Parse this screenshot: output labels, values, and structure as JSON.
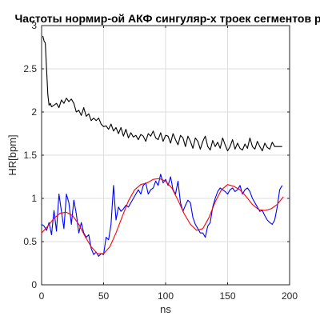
{
  "chart_data": {
    "type": "line",
    "title": "Частоты нормир-ой АКФ сингуляр-х троек сегментов р",
    "xlabel": "ns",
    "ylabel": "HR[bpm]",
    "xlim": [
      0,
      200
    ],
    "ylim": [
      0,
      3
    ],
    "xticks": [
      0,
      50,
      100,
      150,
      200
    ],
    "yticks": [
      0,
      0.5,
      1,
      1.5,
      2,
      2.5,
      3
    ],
    "xtick_labels": [
      "0",
      "50",
      "100",
      "150",
      "200"
    ],
    "ytick_labels": [
      "0",
      "0.5",
      "1",
      "1.5",
      "2",
      "2.5",
      "3"
    ],
    "grid": true,
    "box": true,
    "series": [
      {
        "color": "#000000",
        "x": [
          1,
          2,
          3,
          4,
          5,
          6,
          7,
          8,
          10,
          12,
          14,
          16,
          18,
          20,
          22,
          24,
          26,
          28,
          30,
          32,
          34,
          36,
          38,
          40,
          42,
          44,
          46,
          48,
          50,
          52,
          54,
          56,
          58,
          60,
          62,
          64,
          66,
          68,
          70,
          72,
          74,
          76,
          78,
          80,
          82,
          84,
          86,
          88,
          90,
          92,
          94,
          96,
          98,
          100,
          102,
          104,
          106,
          108,
          110,
          112,
          114,
          116,
          118,
          120,
          122,
          124,
          126,
          128,
          130,
          132,
          134,
          136,
          138,
          140,
          142,
          144,
          146,
          148,
          150,
          152,
          154,
          156,
          158,
          160,
          162,
          164,
          166,
          168,
          170,
          172,
          174,
          176,
          178,
          180,
          182,
          184,
          186,
          188,
          190,
          192,
          194
        ],
        "y": [
          2.88,
          2.82,
          2.8,
          2.5,
          2.2,
          2.08,
          2.1,
          2.06,
          2.08,
          2.1,
          2.05,
          2.14,
          2.1,
          2.16,
          2.12,
          2.15,
          2.1,
          2.0,
          2.02,
          1.96,
          2.05,
          1.95,
          1.98,
          1.9,
          1.93,
          1.9,
          1.93,
          1.86,
          1.83,
          1.84,
          1.8,
          1.86,
          1.78,
          1.82,
          1.75,
          1.82,
          1.72,
          1.8,
          1.7,
          1.76,
          1.71,
          1.73,
          1.68,
          1.74,
          1.72,
          1.66,
          1.75,
          1.72,
          1.78,
          1.7,
          1.68,
          1.76,
          1.66,
          1.73,
          1.72,
          1.64,
          1.75,
          1.68,
          1.62,
          1.73,
          1.7,
          1.6,
          1.72,
          1.66,
          1.58,
          1.7,
          1.66,
          1.57,
          1.66,
          1.72,
          1.6,
          1.56,
          1.67,
          1.6,
          1.65,
          1.58,
          1.7,
          1.62,
          1.55,
          1.6,
          1.68,
          1.57,
          1.64,
          1.58,
          1.56,
          1.63,
          1.58,
          1.7,
          1.6,
          1.57,
          1.66,
          1.6,
          1.55,
          1.64,
          1.59,
          1.57,
          1.65,
          1.6,
          1.6,
          1.6,
          1.6
        ]
      },
      {
        "color": "#0000ff",
        "x": [
          0,
          2,
          4,
          6,
          8,
          10,
          12,
          14,
          16,
          18,
          20,
          22,
          24,
          26,
          28,
          30,
          32,
          34,
          36,
          38,
          40,
          42,
          44,
          46,
          48,
          50,
          52,
          54,
          56,
          58,
          60,
          62,
          64,
          66,
          68,
          70,
          72,
          74,
          76,
          78,
          80,
          82,
          84,
          86,
          88,
          90,
          92,
          94,
          96,
          98,
          100,
          102,
          104,
          106,
          108,
          110,
          112,
          114,
          116,
          118,
          120,
          122,
          124,
          126,
          128,
          130,
          132,
          134,
          136,
          138,
          140,
          142,
          144,
          146,
          148,
          150,
          152,
          154,
          156,
          158,
          160,
          162,
          164,
          166,
          168,
          170,
          172,
          174,
          176,
          178,
          180,
          182,
          184,
          186,
          188,
          190,
          192,
          194
        ],
        "y": [
          0.7,
          0.68,
          0.63,
          0.72,
          0.58,
          0.86,
          0.62,
          1.05,
          0.85,
          0.65,
          1.05,
          0.95,
          0.7,
          0.98,
          0.82,
          0.6,
          0.72,
          0.6,
          0.55,
          0.58,
          0.42,
          0.35,
          0.38,
          0.33,
          0.36,
          0.35,
          0.55,
          0.52,
          0.7,
          1.15,
          0.75,
          0.9,
          0.85,
          0.88,
          0.92,
          0.9,
          0.95,
          1.0,
          1.05,
          1.1,
          1.05,
          1.15,
          1.18,
          1.05,
          1.1,
          1.12,
          1.2,
          1.15,
          1.28,
          1.18,
          1.22,
          1.15,
          1.25,
          1.1,
          1.05,
          1.2,
          0.95,
          0.85,
          0.92,
          0.98,
          0.95,
          0.78,
          0.7,
          0.65,
          0.6,
          0.6,
          0.55,
          0.68,
          0.72,
          0.9,
          1.0,
          1.08,
          1.12,
          1.1,
          1.08,
          1.05,
          1.1,
          1.12,
          1.08,
          1.1,
          1.15,
          1.05,
          1.1,
          1.12,
          1.08,
          1.0,
          0.95,
          0.9,
          0.85,
          0.86,
          0.8,
          0.75,
          0.72,
          0.7,
          0.75,
          0.9,
          1.1,
          1.15
        ]
      },
      {
        "color": "#ff0000",
        "x": [
          0,
          5,
          10,
          15,
          20,
          25,
          30,
          35,
          40,
          45,
          50,
          55,
          60,
          65,
          70,
          75,
          80,
          85,
          90,
          95,
          100,
          105,
          110,
          115,
          120,
          125,
          130,
          135,
          140,
          145,
          150,
          155,
          160,
          165,
          170,
          175,
          180,
          185,
          190,
          195
        ],
        "y": [
          0.6,
          0.68,
          0.77,
          0.83,
          0.84,
          0.8,
          0.7,
          0.56,
          0.44,
          0.36,
          0.36,
          0.44,
          0.6,
          0.79,
          0.97,
          1.1,
          1.16,
          1.18,
          1.22,
          1.23,
          1.2,
          1.12,
          0.98,
          0.82,
          0.7,
          0.63,
          0.65,
          0.78,
          0.96,
          1.1,
          1.16,
          1.14,
          1.1,
          1.02,
          0.93,
          0.87,
          0.86,
          0.88,
          0.93,
          1.02
        ]
      }
    ]
  }
}
